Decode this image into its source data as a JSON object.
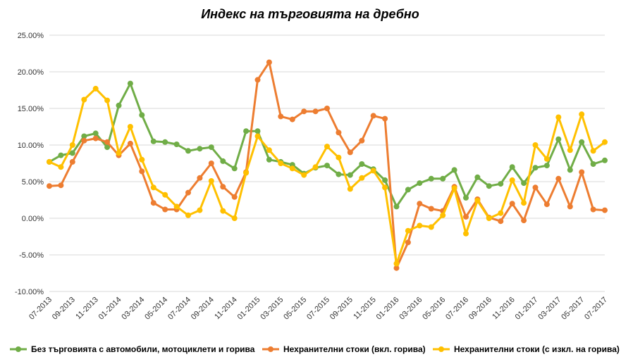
{
  "chart_data": {
    "type": "line",
    "title": "Индекс на търговията на дребно",
    "xlabel": "",
    "ylabel": "",
    "ylim": [
      -10,
      25
    ],
    "y_ticks": [
      -10,
      -5,
      0,
      5,
      10,
      15,
      20,
      25
    ],
    "y_tick_labels": [
      "-10.00%",
      "-5.00%",
      "0.00%",
      "5.00%",
      "10.00%",
      "15.00%",
      "20.00%",
      "25.00%"
    ],
    "x": [
      "07-2013",
      "08-2013",
      "09-2013",
      "10-2013",
      "11-2013",
      "12-2013",
      "01-2014",
      "02-2014",
      "03-2014",
      "04-2014",
      "05-2014",
      "06-2014",
      "07-2014",
      "08-2014",
      "09-2014",
      "10-2014",
      "11-2014",
      "12-2014",
      "01-2015",
      "02-2015",
      "03-2015",
      "04-2015",
      "05-2015",
      "06-2015",
      "07-2015",
      "08-2015",
      "09-2015",
      "10-2015",
      "11-2015",
      "12-2015",
      "01-2016",
      "02-2016",
      "03-2016",
      "04-2016",
      "05-2016",
      "06-2016",
      "07-2016",
      "08-2016",
      "09-2016",
      "10-2016",
      "11-2016",
      "12-2016",
      "01-2017",
      "02-2017",
      "03-2017",
      "04-2017",
      "05-2017",
      "06-2017",
      "07-2017"
    ],
    "x_tick_labels": [
      "07-2013",
      "09-2013",
      "11-2013",
      "01-2014",
      "03-2014",
      "05-2014",
      "07-2014",
      "09-2014",
      "11-2014",
      "01-2015",
      "03-2015",
      "05-2015",
      "07-2015",
      "09-2015",
      "11-2015",
      "01-2016",
      "03-2016",
      "05-2016",
      "07-2016",
      "09-2016",
      "11-2016",
      "01-2017",
      "03-2017",
      "05-2017",
      "07-2017"
    ],
    "grid": true,
    "legend_position": "bottom",
    "series": [
      {
        "name": "Без търговията с автомобили, мотоциклети и горива",
        "color": "#70ad47",
        "values": [
          7.7,
          8.6,
          8.9,
          11.2,
          11.6,
          9.7,
          15.4,
          18.4,
          14.1,
          10.5,
          10.4,
          10.1,
          9.2,
          9.5,
          9.7,
          7.8,
          6.8,
          11.9,
          11.9,
          8.0,
          7.7,
          7.3,
          6.1,
          6.9,
          7.2,
          6.0,
          5.9,
          7.4,
          6.7,
          5.2,
          1.6,
          3.9,
          4.8,
          5.4,
          5.4,
          6.6,
          2.8,
          5.6,
          4.4,
          4.7,
          7.0,
          4.8,
          6.9,
          7.2,
          10.8,
          6.6,
          10.4,
          7.4,
          7.9
        ]
      },
      {
        "name": "Нехранителни стоки (вкл. горива)",
        "color": "#ed7d31",
        "values": [
          4.4,
          4.5,
          7.7,
          10.6,
          10.9,
          10.4,
          8.6,
          10.2,
          6.4,
          2.1,
          1.2,
          1.2,
          3.5,
          5.5,
          7.5,
          4.3,
          2.9,
          6.3,
          18.9,
          21.3,
          13.9,
          13.5,
          14.6,
          14.6,
          15.0,
          11.7,
          9.0,
          10.6,
          14.0,
          13.6,
          -6.8,
          -3.3,
          2.0,
          1.3,
          1.0,
          4.3,
          0.2,
          2.6,
          0.1,
          -0.4,
          2.0,
          -0.3,
          4.2,
          1.9,
          5.4,
          1.6,
          6.3,
          1.2,
          1.1
        ]
      },
      {
        "name": "Нехранителни стоки (с изкл. на горива)",
        "color": "#ffc000",
        "values": [
          7.7,
          7.0,
          10.0,
          16.2,
          17.7,
          16.1,
          8.9,
          12.5,
          8.0,
          4.2,
          3.2,
          1.6,
          0.4,
          1.1,
          5.1,
          1.0,
          0.0,
          6.2,
          11.2,
          9.3,
          7.5,
          6.8,
          5.9,
          7.0,
          9.8,
          8.3,
          4.0,
          5.5,
          6.5,
          4.2,
          -6.2,
          -1.7,
          -1.0,
          -1.2,
          0.4,
          4.1,
          -2.1,
          2.4,
          0.0,
          0.7,
          5.2,
          2.1,
          10.0,
          8.1,
          13.8,
          9.3,
          14.2,
          9.2,
          10.4
        ]
      }
    ]
  }
}
